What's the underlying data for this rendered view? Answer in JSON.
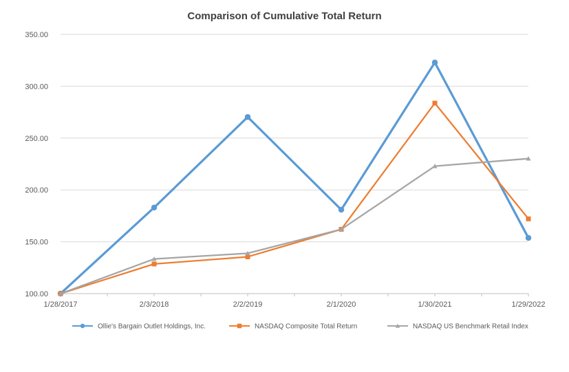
{
  "chart_data": {
    "type": "line",
    "title": "Comparison of Cumulative Total Return",
    "xlabel": "",
    "ylabel": "",
    "x_categories": [
      "1/28/2017",
      "2/3/2018",
      "2/2/2019",
      "2/1/2020",
      "1/30/2021",
      "1/29/2022"
    ],
    "y_ticks": [
      100,
      150,
      200,
      250,
      300,
      350
    ],
    "y_tick_labels": [
      "100.00",
      "150.00",
      "200.00",
      "250.00",
      "300.00",
      "350.00"
    ],
    "ylim": [
      100,
      350
    ],
    "grid": "horizontal-only",
    "legend_position": "bottom",
    "series": [
      {
        "name": "Ollie's Bargain Outlet Holdings, Inc.",
        "color": "#5B9BD5",
        "marker": "circle",
        "line_width": 3.25,
        "values": [
          100.0,
          183.0,
          270.3,
          180.9,
          322.9,
          153.7
        ]
      },
      {
        "name": "NASDAQ Composite Total Return",
        "color": "#ED7D31",
        "marker": "square",
        "line_width": 2.25,
        "values": [
          100.0,
          128.6,
          135.5,
          162.0,
          283.7,
          172.1
        ]
      },
      {
        "name": "NASDAQ US Benchmark Retail Index",
        "color": "#A5A5A5",
        "marker": "triangle",
        "line_width": 2.25,
        "values": [
          100.0,
          133.4,
          138.9,
          162.0,
          222.9,
          230.2
        ]
      }
    ],
    "style": {
      "background": "#FFFFFF",
      "title_color": "#404040",
      "gridline_color": "#D9D9D9",
      "axis_line_color": "#BFBFBF",
      "tick_color": "#BFBFBF",
      "label_color": "#595959"
    }
  }
}
